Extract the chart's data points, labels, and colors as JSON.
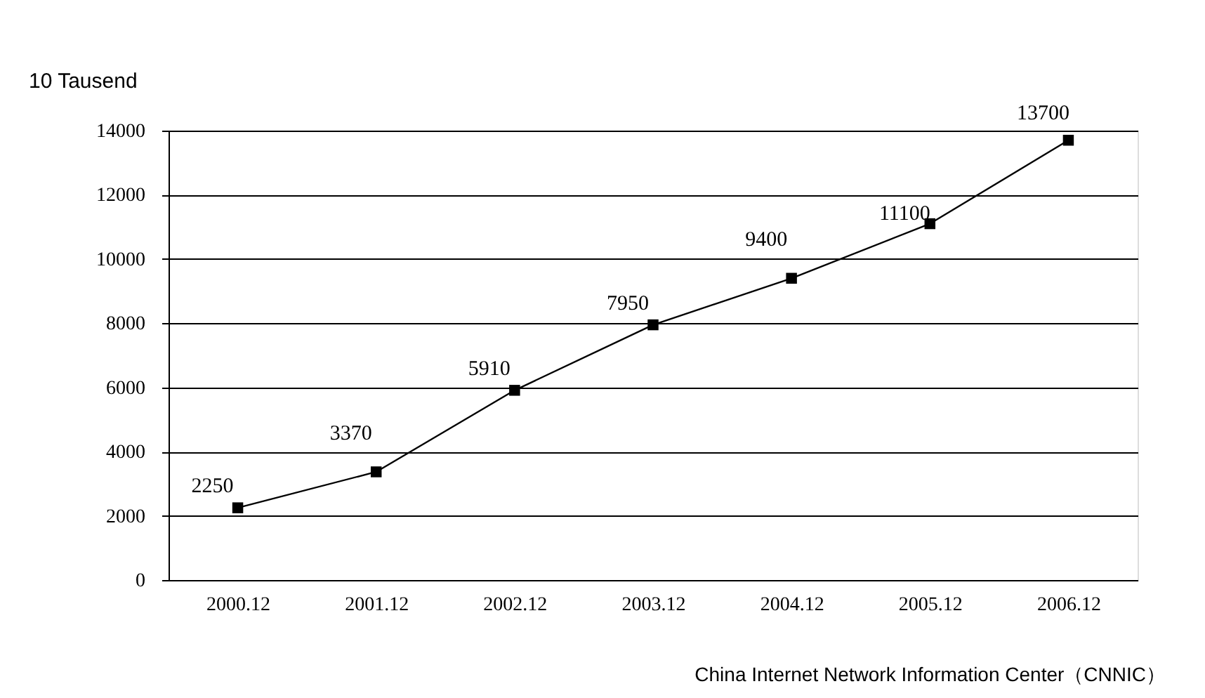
{
  "chart_data": {
    "type": "line",
    "ylabel": "10 Tausend",
    "categories": [
      "2000.12",
      "2001.12",
      "2002.12",
      "2003.12",
      "2004.12",
      "2005.12",
      "2006.12"
    ],
    "series": [
      {
        "color": "#000000",
        "values": [
          2250,
          3370,
          5910,
          7950,
          9400,
          11100,
          13700
        ]
      }
    ],
    "ylim": [
      0,
      14000
    ],
    "yticks": [
      0,
      2000,
      4000,
      6000,
      8000,
      10000,
      12000,
      14000
    ],
    "grid": "y",
    "marker": "square",
    "line_style": "solid",
    "data_labels": true,
    "annotations": [
      "China Internet Network Information Center（CNNIC）"
    ]
  }
}
